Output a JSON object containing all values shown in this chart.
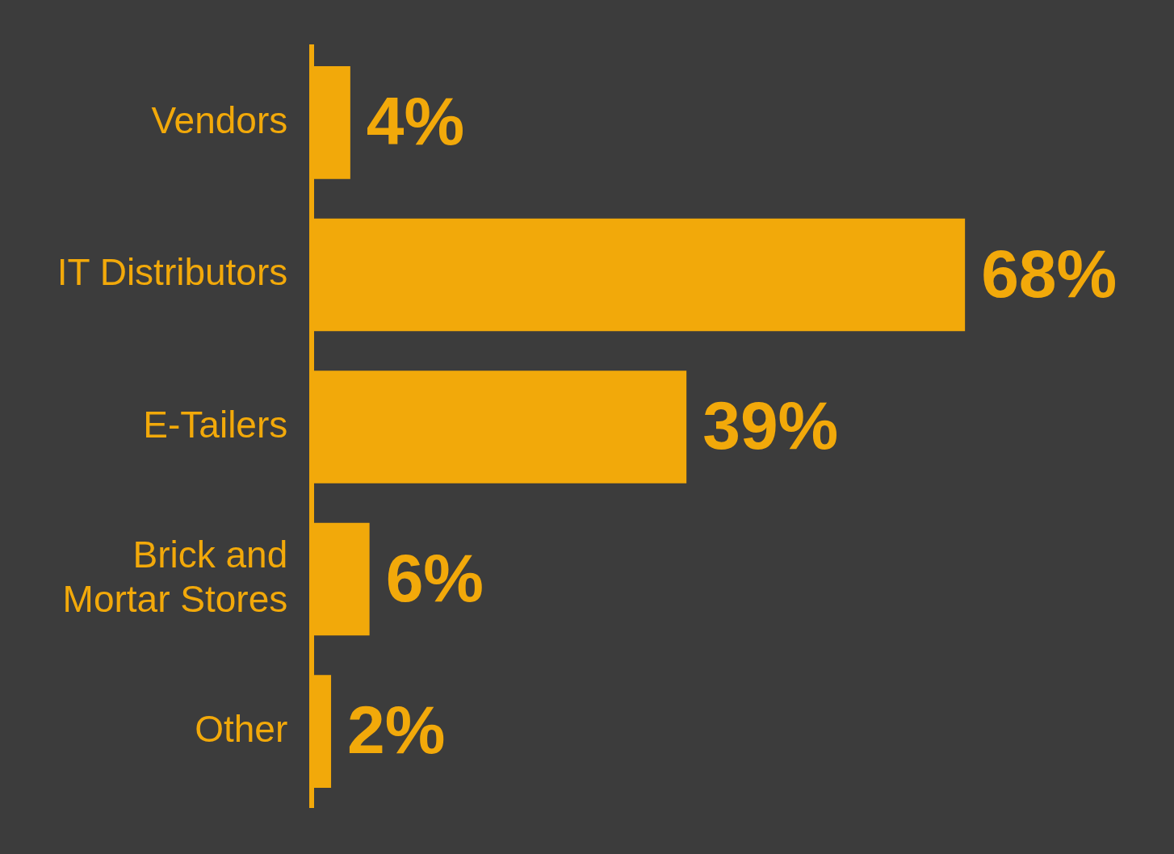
{
  "chart_data": {
    "type": "bar",
    "orientation": "horizontal",
    "categories": [
      "Vendors",
      "IT Distributors",
      "E-Tailers",
      "Brick and Mortar Stores",
      "Other"
    ],
    "values": [
      4,
      68,
      39,
      6,
      2
    ],
    "color": "#f2a90a",
    "value_labels": [
      "4%",
      "68%",
      "39%",
      "6%",
      "2%"
    ],
    "grid": false,
    "legend": false,
    "tick_labels": "y"
  }
}
